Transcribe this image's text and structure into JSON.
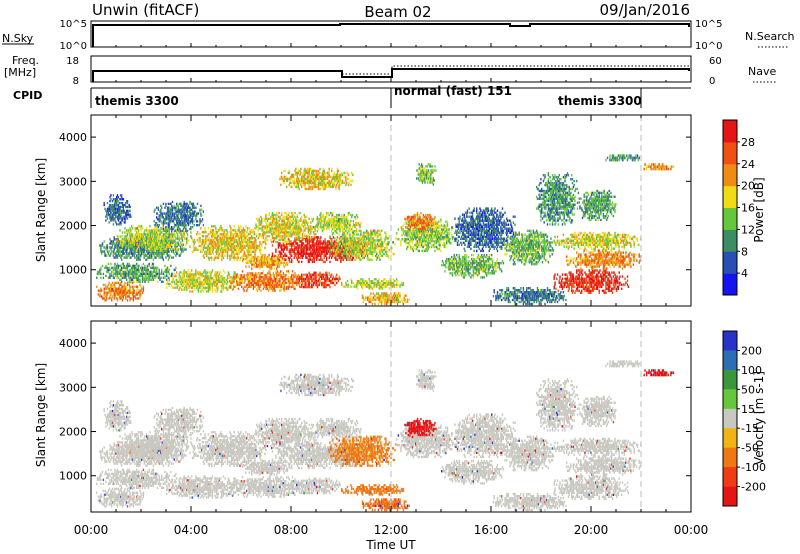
{
  "header": {
    "station": "Unwin (fitACF)",
    "beam": "Beam 02",
    "date": "09/Jan/2016"
  },
  "nsky_panel": {
    "left_label": "N.Sky",
    "right_label": "N.Search",
    "left_ticks": [
      "10^5",
      "10^0"
    ],
    "right_ticks": [
      "10^5",
      "10^0"
    ]
  },
  "freq_panel": {
    "left_label_1": "Freq.",
    "left_label_2": "[MHz]",
    "right_label": "Nave",
    "left_ticks": [
      "18",
      "8"
    ],
    "right_ticks": [
      "60",
      "0"
    ]
  },
  "cpid": {
    "label": "CPID",
    "segments": [
      "themis 3300",
      "normal (fast) 151",
      "themis 3300"
    ]
  },
  "time_axis": {
    "label": "Time UT",
    "ticks": [
      "00:00",
      "04:00",
      "08:00",
      "12:00",
      "16:00",
      "20:00",
      "00:00"
    ]
  },
  "range_axis": {
    "label": "Slant Range [km]",
    "ticks": [
      "1000",
      "2000",
      "3000",
      "4000"
    ]
  },
  "power_colorbar": {
    "label": "Power [dB]",
    "ticks": [
      "4",
      "8",
      "12",
      "16",
      "20",
      "24",
      "28"
    ]
  },
  "velocity_colorbar": {
    "label": "Velocity [m s-1]",
    "ticks": [
      "200",
      "100",
      "50",
      "15",
      "-15",
      "-50",
      "-100",
      "-200"
    ]
  },
  "colors": {
    "power_scale": [
      "#1414f0",
      "#2850b4",
      "#3c8c64",
      "#64c83c",
      "#f0dc14",
      "#f08c14",
      "#f05014",
      "#e61414"
    ],
    "velocity_scale": [
      "#2832c8",
      "#2a6eb4",
      "#3c963c",
      "#64c83c",
      "#c8c8c0",
      "#f0b414",
      "#f07814",
      "#f03c14",
      "#e61414"
    ]
  },
  "chart_data": {
    "type": "heatmap",
    "x_unit": "hours UT",
    "xlim": [
      0,
      24
    ],
    "ylim": [
      180,
      4500
    ],
    "mode_changes_hours": [
      12,
      22
    ],
    "power_dB_range": [
      0,
      30
    ],
    "velocity_range": [
      -250,
      250
    ],
    "scatter_regions": [
      {
        "t": [
          0.2,
          2.2
        ],
        "r": [
          280,
          720
        ],
        "power": 22,
        "velocity": 0
      },
      {
        "t": [
          0.2,
          3.5
        ],
        "r": [
          700,
          1150
        ],
        "power": 11,
        "velocity": 0
      },
      {
        "t": [
          0.3,
          3.8
        ],
        "r": [
          1200,
          1750
        ],
        "power": 9,
        "velocity": 0
      },
      {
        "t": [
          1.0,
          4.0
        ],
        "r": [
          1400,
          2000
        ],
        "power": 15,
        "velocity": 0
      },
      {
        "t": [
          0.5,
          1.6
        ],
        "r": [
          2000,
          2700
        ],
        "power": 7,
        "velocity": 0
      },
      {
        "t": [
          2.5,
          4.5
        ],
        "r": [
          1850,
          2550
        ],
        "power": 8,
        "velocity": 0
      },
      {
        "t": [
          4.0,
          7.0
        ],
        "r": [
          1200,
          2000
        ],
        "power": 18,
        "velocity": 0
      },
      {
        "t": [
          3.0,
          6.0
        ],
        "r": [
          480,
          1000
        ],
        "power": 16,
        "velocity": 0
      },
      {
        "t": [
          5.5,
          8.5
        ],
        "r": [
          500,
          980
        ],
        "power": 22,
        "velocity": 0
      },
      {
        "t": [
          8.0,
          10.0
        ],
        "r": [
          580,
          950
        ],
        "power": 26,
        "velocity": 0
      },
      {
        "t": [
          6.0,
          8.0
        ],
        "r": [
          1000,
          1350
        ],
        "power": 20,
        "velocity": 0
      },
      {
        "t": [
          7.2,
          11.0
        ],
        "r": [
          1150,
          1750
        ],
        "power": 29,
        "velocity": 0
      },
      {
        "t": [
          6.5,
          9.0
        ],
        "r": [
          1600,
          2300
        ],
        "power": 17,
        "velocity": 0
      },
      {
        "t": [
          8.8,
          10.8
        ],
        "r": [
          1800,
          2300
        ],
        "power": 15,
        "velocity": 0
      },
      {
        "t": [
          7.5,
          10.5
        ],
        "r": [
          2800,
          3300
        ],
        "power": 18,
        "velocity": 0
      },
      {
        "t": [
          9.5,
          12.2
        ],
        "r": [
          1200,
          1900
        ],
        "power": 15,
        "velocity": -40
      },
      {
        "t": [
          10.0,
          12.5
        ],
        "r": [
          550,
          800
        ],
        "power": 16,
        "velocity": -60
      },
      {
        "t": [
          10.8,
          12.8
        ],
        "r": [
          200,
          480
        ],
        "power": 19,
        "velocity": -70
      },
      {
        "t": [
          12.2,
          14.5
        ],
        "r": [
          1400,
          2150
        ],
        "power": 14,
        "velocity": 0
      },
      {
        "t": [
          12.5,
          13.8
        ],
        "r": [
          1850,
          2300
        ],
        "power": 22,
        "velocity": -170
      },
      {
        "t": [
          13.0,
          13.8
        ],
        "r": [
          2900,
          3400
        ],
        "power": 13,
        "velocity": 0
      },
      {
        "t": [
          14.5,
          17.0
        ],
        "r": [
          1400,
          2400
        ],
        "power": 7,
        "velocity": 0
      },
      {
        "t": [
          14.0,
          16.5
        ],
        "r": [
          800,
          1350
        ],
        "power": 12,
        "velocity": 0
      },
      {
        "t": [
          16.5,
          18.5
        ],
        "r": [
          1100,
          1900
        ],
        "power": 12,
        "velocity": 0
      },
      {
        "t": [
          16.0,
          19.0
        ],
        "r": [
          200,
          600
        ],
        "power": 8,
        "velocity": 0
      },
      {
        "t": [
          17.8,
          19.5
        ],
        "r": [
          2000,
          3200
        ],
        "power": 10,
        "velocity": 0
      },
      {
        "t": [
          18.5,
          21.5
        ],
        "r": [
          450,
          1000
        ],
        "power": 27,
        "velocity": 0
      },
      {
        "t": [
          19.0,
          22.0
        ],
        "r": [
          1000,
          1450
        ],
        "power": 21,
        "velocity": 0
      },
      {
        "t": [
          18.5,
          22.0
        ],
        "r": [
          1450,
          1850
        ],
        "power": 16,
        "velocity": 0
      },
      {
        "t": [
          19.5,
          21.0
        ],
        "r": [
          2100,
          2800
        ],
        "power": 11,
        "velocity": 0
      },
      {
        "t": [
          20.5,
          22.0
        ],
        "r": [
          3450,
          3600
        ],
        "power": 10,
        "velocity": 0
      },
      {
        "t": [
          22.0,
          23.3
        ],
        "r": [
          3250,
          3400
        ],
        "power": 20,
        "velocity": -180
      }
    ]
  }
}
